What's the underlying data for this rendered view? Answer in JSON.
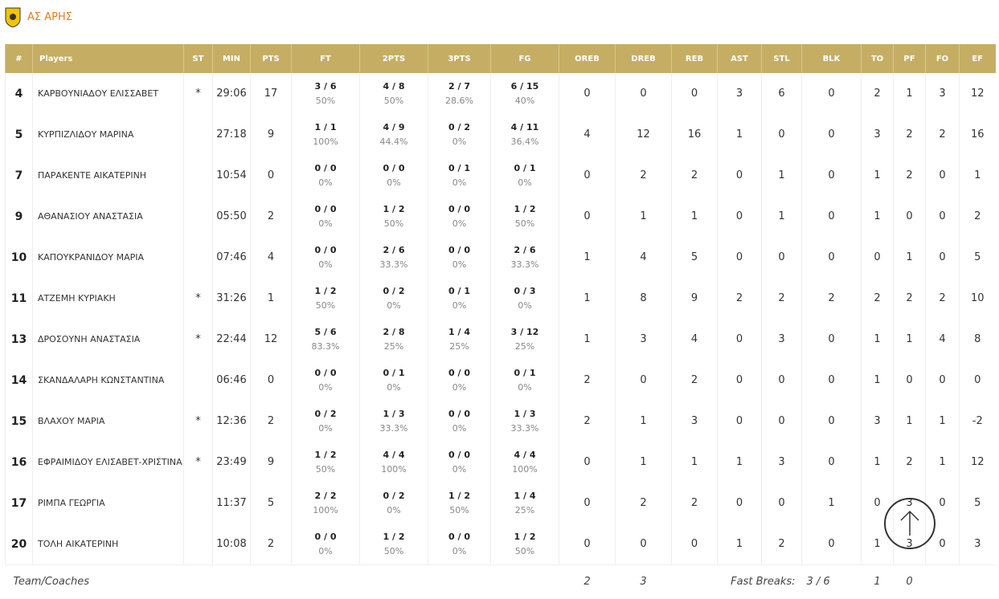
{
  "header": {
    "team": "ΑΣ ΑΡΗΣ"
  },
  "table": {
    "columns": [
      "#",
      "Players",
      "ST",
      "MIN",
      "PTS",
      "FT",
      "2PTS",
      "3PTS",
      "FG",
      "OREB",
      "DREB",
      "REB",
      "AST",
      "STL",
      "BLK",
      "TO",
      "PF",
      "FO",
      "EF"
    ],
    "rows": [
      [
        "4",
        "ΚΑΡΒΟΥΝΙΑΔΟΥ ΕΛΙΣΣΑΒΕΤ",
        "*",
        "29:06",
        "17",
        "3 / 6",
        "50%",
        "4 / 8",
        "50%",
        "2 / 7",
        "28.6%",
        "6 / 15",
        "40%",
        "0",
        "0",
        "0",
        "3",
        "6",
        "0",
        "2",
        "1",
        "3",
        "12"
      ],
      [
        "5",
        "ΚΥΡΠΙΖΛΙΔΟΥ ΜΑΡΙΝΑ",
        null,
        "27:18",
        "9",
        "1 / 1",
        "100%",
        "4 / 9",
        "44.4%",
        "0 / 2",
        "0%",
        "4 / 11",
        "36.4%",
        "4",
        "12",
        "16",
        "1",
        "0",
        "0",
        "3",
        "2",
        "2",
        "16"
      ],
      [
        "7",
        "ΠΑΡΑΚΕΝΤΕ ΑΙΚΑΤΕΡΙΝΗ",
        null,
        "10:54",
        "0",
        "0 / 0",
        "0%",
        "0 / 0",
        "0%",
        "0 / 1",
        "0%",
        "0 / 1",
        "0%",
        "0",
        "2",
        "2",
        "0",
        "1",
        "0",
        "1",
        "2",
        "0",
        "1"
      ],
      [
        "9",
        "ΑΘΑΝΑΣΙΟΥ ΑΝΑΣΤΑΣΙΑ",
        null,
        "05:50",
        "2",
        "0 / 0",
        "0%",
        "1 / 2",
        "50%",
        "0 / 0",
        "0%",
        "1 / 2",
        "50%",
        "0",
        "1",
        "1",
        "0",
        "1",
        "0",
        "1",
        "0",
        "0",
        "2"
      ],
      [
        "10",
        "ΚΑΠΟΥΚΡΑΝΙΔΟΥ ΜΑΡΙΑ",
        null,
        "07:46",
        "4",
        "0 / 0",
        "0%",
        "2 / 6",
        "33.3%",
        "0 / 0",
        "0%",
        "2 / 6",
        "33.3%",
        "1",
        "4",
        "5",
        "0",
        "0",
        "0",
        "0",
        "1",
        "0",
        "5"
      ],
      [
        "11",
        "ΑΤΖΕΜΗ ΚΥΡΙΑΚΗ",
        "*",
        "31:26",
        "1",
        "1 / 2",
        "50%",
        "0 / 2",
        "0%",
        "0 / 1",
        "0%",
        "0 / 3",
        "0%",
        "1",
        "8",
        "9",
        "2",
        "2",
        "2",
        "2",
        "2",
        "2",
        "10"
      ],
      [
        "13",
        "ΔΡΟΣΟΥΝΗ ΑΝΑΣΤΑΣΙΑ",
        "*",
        "22:44",
        "12",
        "5 / 6",
        "83.3%",
        "2 / 8",
        "25%",
        "1 / 4",
        "25%",
        "3 / 12",
        "25%",
        "1",
        "3",
        "4",
        "0",
        "3",
        "0",
        "1",
        "1",
        "4",
        "8"
      ],
      [
        "14",
        "ΣΚΑΝΔΑΛΑΡΗ ΚΩΝΣΤΑΝΤΙΝΑ",
        null,
        "06:46",
        "0",
        "0 / 0",
        "0%",
        "0 / 1",
        "0%",
        "0 / 0",
        "0%",
        "0 / 1",
        "0%",
        "2",
        "0",
        "2",
        "0",
        "0",
        "0",
        "1",
        "0",
        "0",
        "0"
      ],
      [
        "15",
        "ΒΛΑΧΟΥ ΜΑΡΙΑ",
        "*",
        "12:36",
        "2",
        "0 / 2",
        "0%",
        "1 / 3",
        "33.3%",
        "0 / 0",
        "0%",
        "1 / 3",
        "33.3%",
        "2",
        "1",
        "3",
        "0",
        "0",
        "0",
        "3",
        "1",
        "1",
        "-2"
      ],
      [
        "16",
        "ΕΦΡΑΙΜΙΔΟΥ ΕΛΙΣΑΒΕΤ-ΧΡΙΣΤΙΝΑ",
        "*",
        "23:49",
        "9",
        "1 / 2",
        "50%",
        "4 / 4",
        "100%",
        "0 / 0",
        "0%",
        "4 / 4",
        "100%",
        "0",
        "1",
        "1",
        "1",
        "3",
        "0",
        "1",
        "2",
        "1",
        "12"
      ],
      [
        "17",
        "ΡΙΜΠΑ ΓΕΩΡΓΙΑ",
        null,
        "11:37",
        "5",
        "2 / 2",
        "100%",
        "0 / 2",
        "0%",
        "1 / 2",
        "50%",
        "1 / 4",
        "25%",
        "0",
        "2",
        "2",
        "0",
        "0",
        "1",
        "0",
        "3",
        "0",
        "5"
      ],
      [
        "20",
        "ΤΟΛΗ ΑΙΚΑΤΕΡΙΝΗ",
        null,
        "10:08",
        "2",
        "0 / 0",
        "0%",
        "1 / 2",
        "50%",
        "0 / 0",
        "0%",
        "1 / 2",
        "50%",
        "0",
        "0",
        "0",
        "1",
        "2",
        "0",
        "1",
        "3",
        "0",
        "3"
      ]
    ],
    "footer": {
      "label": "Team/Coaches",
      "oreb": "2",
      "dreb": "3",
      "fast_breaks_label": "Fast Breaks:",
      "fast_breaks": "3 / 6",
      "to": "1",
      "pf": "0"
    }
  }
}
